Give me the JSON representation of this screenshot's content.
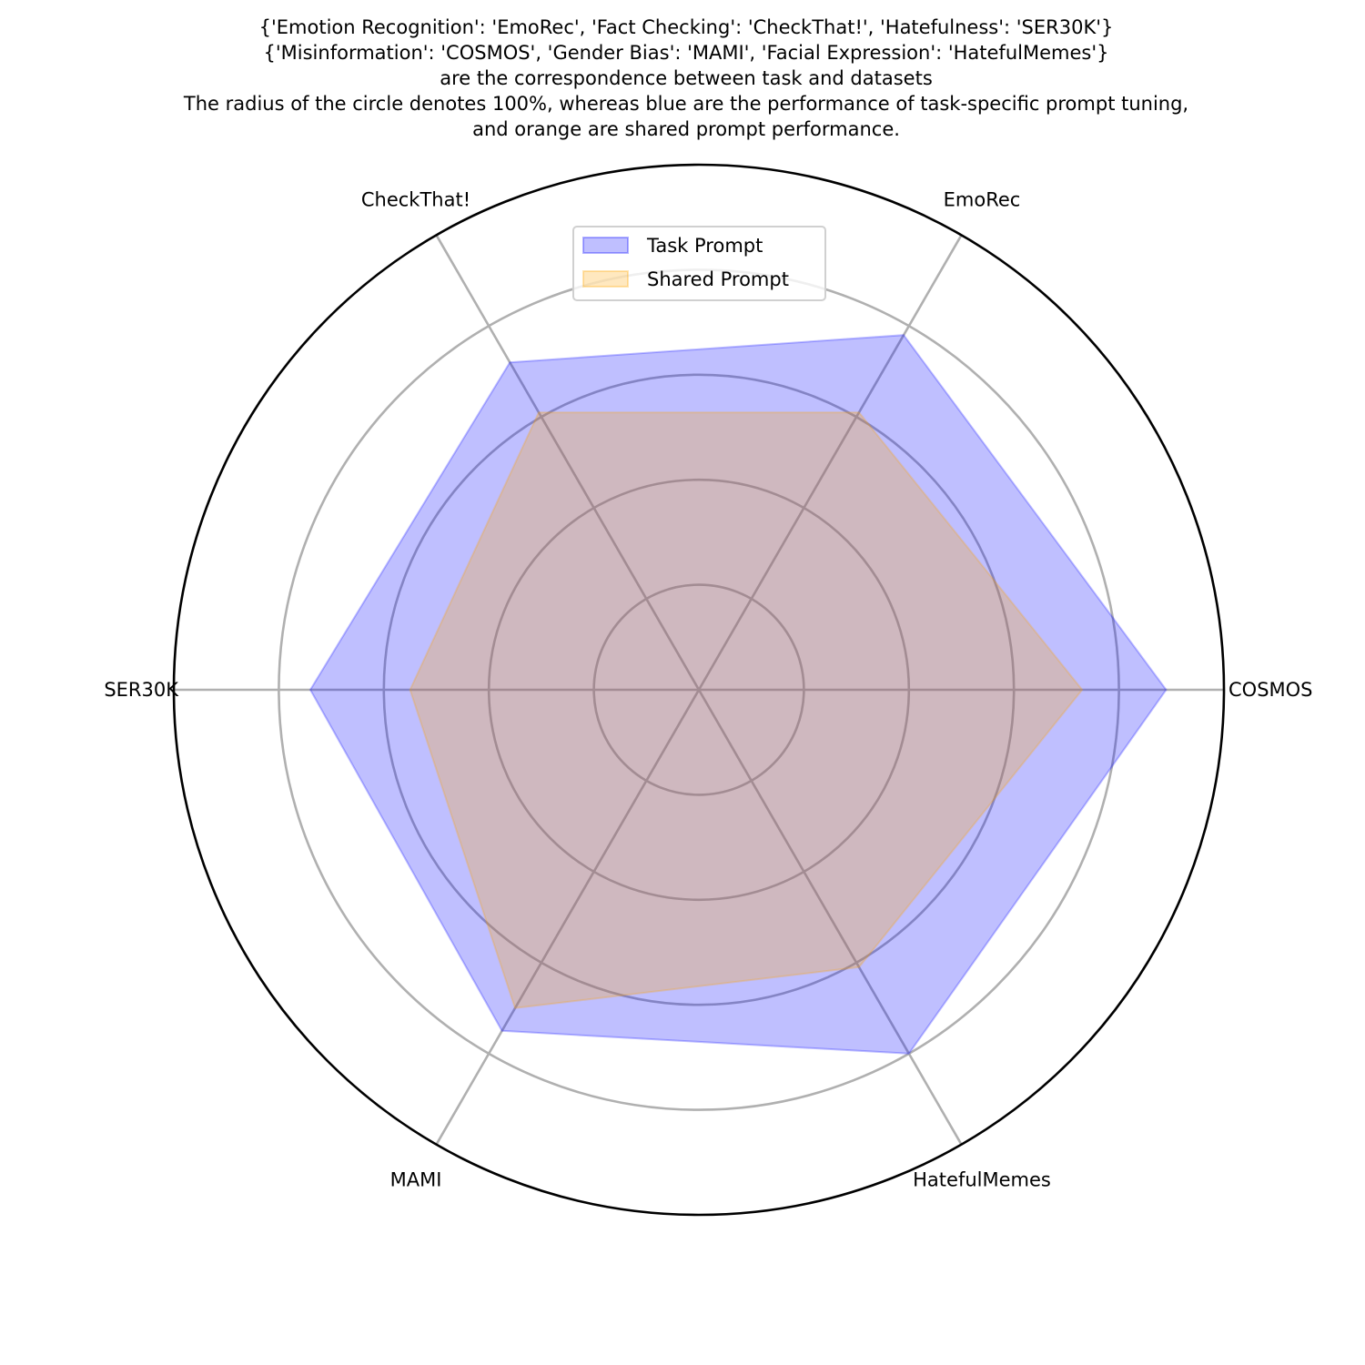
{
  "chart_data": {
    "type": "radar",
    "title_lines": [
      "{'Emotion Recognition': 'EmoRec', 'Fact Checking': 'CheckThat!', 'Hatefulness': 'SER30K'}",
      "{'Misinformation': 'COSMOS', 'Gender Bias': 'MAMI', 'Facial Expression': 'HatefulMemes'}",
      "are the correspondence between task and datasets",
      "The radius of the circle denotes 100%, whereas blue are the performance of task-specific prompt tuning,",
      "and orange are shared prompt performance."
    ],
    "categories": [
      "COSMOS",
      "EmoRec",
      "CheckThat!",
      "SER30K",
      "MAMI",
      "HatefulMemes"
    ],
    "rlim": [
      0,
      100
    ],
    "grid_rings": [
      20,
      40,
      60,
      80
    ],
    "grid": true,
    "legend_position": "top-center",
    "series": [
      {
        "name": "Task Prompt",
        "color": "#0000ff",
        "values": [
          89,
          78,
          72,
          74,
          75,
          80
        ]
      },
      {
        "name": "Shared Prompt",
        "color": "#ffa500",
        "values": [
          73,
          61,
          61,
          55,
          70,
          61
        ]
      }
    ]
  }
}
